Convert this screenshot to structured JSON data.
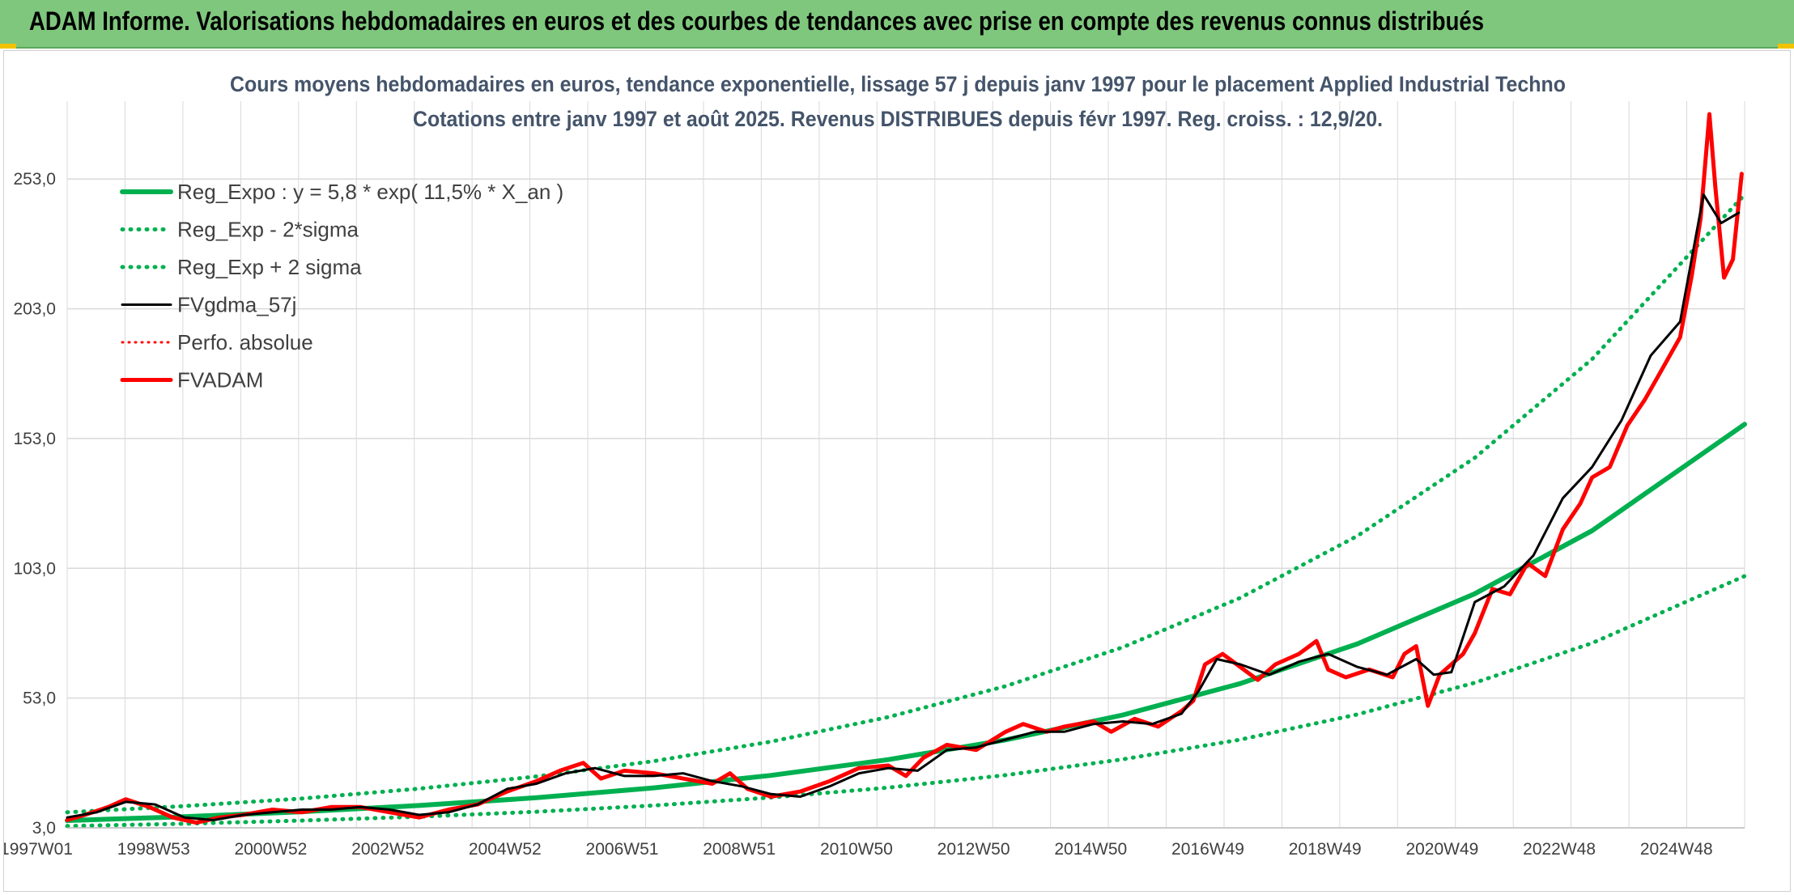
{
  "banner": {
    "title": "ADAM Informe. Valorisations hebdomadaires en euros et des courbes de tendances avec prise en compte des revenus connus distribués"
  },
  "colors": {
    "banner_bg": "#7fc77d",
    "trend": "#00b050",
    "smooth": "#000000",
    "price": "#ff0000",
    "grid": "#d9d9d9"
  },
  "chart_data": {
    "type": "line",
    "title": "Cours moyens hebdomadaires en euros, tendance exponentielle, lissage 57 j depuis janv 1997 pour le placement Applied Industrial Techno",
    "subtitle": "Cotations entre janv 1997 et août 2025. Revenus DISTRIBUES depuis févr 1997. Reg. croiss. : 12,9/20.",
    "x_ticks": [
      "1997W01",
      "1998W53",
      "2000W52",
      "2002W52",
      "2004W52",
      "2006W51",
      "2008W51",
      "2010W50",
      "2012W50",
      "2014W50",
      "2016W49",
      "2018W49",
      "2020W49",
      "2022W48",
      "2024W48"
    ],
    "x_range": [
      1997.0,
      2025.6
    ],
    "y_ticks": [
      "3,0",
      "53,0",
      "103,0",
      "153,0",
      "203,0",
      "253,0"
    ],
    "ylim": [
      3,
      283
    ],
    "grid": true,
    "legend_position": "top-left",
    "series": [
      {
        "name": "Reg_Expo : y = 5,8 * exp( 11,5% *  X_an )",
        "style": "solid-green",
        "points": [
          [
            1997,
            5.8
          ],
          [
            1999,
            7.3
          ],
          [
            2001,
            9.2
          ],
          [
            2003,
            11.6
          ],
          [
            2005,
            14.6
          ],
          [
            2007,
            18.4
          ],
          [
            2009,
            23.2
          ],
          [
            2011,
            29.3
          ],
          [
            2013,
            36.9
          ],
          [
            2015,
            46.5
          ],
          [
            2017,
            58.6
          ],
          [
            2019,
            73.9
          ],
          [
            2021,
            93.2
          ],
          [
            2023,
            117.5
          ],
          [
            2025.6,
            158.5
          ]
        ]
      },
      {
        "name": "Reg_Exp - 2*sigma",
        "style": "dotted-green",
        "points": [
          [
            1997,
            3.7
          ],
          [
            1999,
            4.6
          ],
          [
            2001,
            5.8
          ],
          [
            2003,
            7.3
          ],
          [
            2005,
            9.2
          ],
          [
            2007,
            11.6
          ],
          [
            2009,
            14.7
          ],
          [
            2011,
            18.5
          ],
          [
            2013,
            23.3
          ],
          [
            2015,
            29.4
          ],
          [
            2017,
            37.0
          ],
          [
            2019,
            46.7
          ],
          [
            2021,
            58.9
          ],
          [
            2023,
            74.2
          ],
          [
            2025.6,
            100.0
          ]
        ]
      },
      {
        "name": "Reg_Exp + 2 sigma",
        "style": "dotted-green",
        "points": [
          [
            1997,
            9.0
          ],
          [
            1999,
            11.4
          ],
          [
            2001,
            14.3
          ],
          [
            2003,
            18.1
          ],
          [
            2005,
            22.8
          ],
          [
            2007,
            28.7
          ],
          [
            2009,
            36.2
          ],
          [
            2011,
            45.7
          ],
          [
            2013,
            57.6
          ],
          [
            2015,
            72.6
          ],
          [
            2017,
            91.6
          ],
          [
            2019,
            115.5
          ],
          [
            2021,
            145.6
          ],
          [
            2023,
            183.6
          ],
          [
            2025.6,
            247.0
          ]
        ]
      },
      {
        "name": "FVgdma_57j",
        "style": "solid-black",
        "points": [
          [
            1997,
            7
          ],
          [
            1997.5,
            9
          ],
          [
            1998,
            13
          ],
          [
            1998.5,
            12
          ],
          [
            1999,
            7
          ],
          [
            1999.5,
            6
          ],
          [
            2000,
            8
          ],
          [
            2000.5,
            9
          ],
          [
            2001,
            10
          ],
          [
            2001.5,
            10
          ],
          [
            2002,
            11
          ],
          [
            2002.5,
            10
          ],
          [
            2003,
            8
          ],
          [
            2003.5,
            9
          ],
          [
            2004,
            12
          ],
          [
            2004.5,
            18
          ],
          [
            2005,
            20
          ],
          [
            2005.5,
            24
          ],
          [
            2006,
            26
          ],
          [
            2006.5,
            23
          ],
          [
            2007,
            23
          ],
          [
            2007.5,
            24
          ],
          [
            2008,
            21
          ],
          [
            2008.5,
            19
          ],
          [
            2009,
            16
          ],
          [
            2009.5,
            15
          ],
          [
            2010,
            19
          ],
          [
            2010.5,
            24
          ],
          [
            2011,
            26
          ],
          [
            2011.5,
            25
          ],
          [
            2012,
            33
          ],
          [
            2012.5,
            34
          ],
          [
            2013,
            37
          ],
          [
            2013.5,
            40
          ],
          [
            2014,
            40
          ],
          [
            2014.5,
            43
          ],
          [
            2015,
            44
          ],
          [
            2015.5,
            43
          ],
          [
            2016,
            47
          ],
          [
            2016.3,
            56
          ],
          [
            2016.6,
            68
          ],
          [
            2017,
            66
          ],
          [
            2017.5,
            62
          ],
          [
            2018,
            67
          ],
          [
            2018.5,
            70
          ],
          [
            2019,
            65
          ],
          [
            2019.5,
            62
          ],
          [
            2020,
            68
          ],
          [
            2020.3,
            62
          ],
          [
            2020.6,
            63
          ],
          [
            2021,
            90
          ],
          [
            2021.5,
            96
          ],
          [
            2022,
            108
          ],
          [
            2022.5,
            130
          ],
          [
            2023,
            142
          ],
          [
            2023.5,
            160
          ],
          [
            2024,
            185
          ],
          [
            2024.5,
            198
          ],
          [
            2024.9,
            247
          ],
          [
            2025.2,
            236
          ],
          [
            2025.5,
            240
          ]
        ]
      },
      {
        "name": "Perfo. absolue",
        "style": "dotted-red",
        "points": [
          [
            1997,
            7
          ],
          [
            1998,
            13
          ],
          [
            1999,
            7
          ],
          [
            2000,
            8
          ],
          [
            2001,
            10
          ],
          [
            2002,
            11
          ],
          [
            2003,
            8
          ],
          [
            2004,
            12
          ],
          [
            2005,
            20
          ],
          [
            2006,
            26
          ],
          [
            2007,
            23
          ],
          [
            2008,
            21
          ],
          [
            2009,
            16
          ],
          [
            2010,
            19
          ],
          [
            2011,
            26
          ],
          [
            2012,
            33
          ],
          [
            2013,
            37
          ],
          [
            2014,
            40
          ],
          [
            2015,
            44
          ],
          [
            2016,
            47
          ],
          [
            2017,
            66
          ],
          [
            2018,
            67
          ],
          [
            2019,
            65
          ],
          [
            2020,
            68
          ],
          [
            2021,
            90
          ],
          [
            2022,
            108
          ],
          [
            2023,
            142
          ],
          [
            2024,
            185
          ],
          [
            2025.5,
            240
          ]
        ]
      },
      {
        "name": "FVADAM",
        "style": "solid-red",
        "points": [
          [
            1997,
            6
          ],
          [
            1997.3,
            8
          ],
          [
            1997.7,
            11
          ],
          [
            1998,
            14
          ],
          [
            1998.4,
            11
          ],
          [
            1998.8,
            7
          ],
          [
            1999.2,
            5
          ],
          [
            1999.6,
            7
          ],
          [
            2000,
            8
          ],
          [
            2000.5,
            10
          ],
          [
            2001,
            9
          ],
          [
            2001.5,
            11
          ],
          [
            2002,
            11
          ],
          [
            2002.5,
            9
          ],
          [
            2003,
            7
          ],
          [
            2003.5,
            10
          ],
          [
            2004,
            12
          ],
          [
            2004.5,
            17
          ],
          [
            2005,
            21
          ],
          [
            2005.4,
            25
          ],
          [
            2005.8,
            28
          ],
          [
            2006.1,
            22
          ],
          [
            2006.5,
            25
          ],
          [
            2007,
            24
          ],
          [
            2007.5,
            22
          ],
          [
            2008,
            20
          ],
          [
            2008.3,
            24
          ],
          [
            2008.6,
            18
          ],
          [
            2009,
            15
          ],
          [
            2009.5,
            17
          ],
          [
            2010,
            21
          ],
          [
            2010.5,
            26
          ],
          [
            2011,
            27
          ],
          [
            2011.3,
            23
          ],
          [
            2011.6,
            30
          ],
          [
            2012,
            35
          ],
          [
            2012.5,
            33
          ],
          [
            2013,
            40
          ],
          [
            2013.3,
            43
          ],
          [
            2013.7,
            40
          ],
          [
            2014,
            42
          ],
          [
            2014.5,
            44
          ],
          [
            2014.8,
            40
          ],
          [
            2015.2,
            45
          ],
          [
            2015.6,
            42
          ],
          [
            2016,
            48
          ],
          [
            2016.2,
            52
          ],
          [
            2016.4,
            66
          ],
          [
            2016.7,
            70
          ],
          [
            2017,
            65
          ],
          [
            2017.3,
            60
          ],
          [
            2017.6,
            66
          ],
          [
            2018,
            70
          ],
          [
            2018.3,
            75
          ],
          [
            2018.5,
            64
          ],
          [
            2018.8,
            61
          ],
          [
            2019.2,
            64
          ],
          [
            2019.6,
            61
          ],
          [
            2019.8,
            70
          ],
          [
            2020,
            73
          ],
          [
            2020.2,
            50
          ],
          [
            2020.4,
            62
          ],
          [
            2020.8,
            70
          ],
          [
            2021,
            78
          ],
          [
            2021.3,
            95
          ],
          [
            2021.6,
            93
          ],
          [
            2021.9,
            105
          ],
          [
            2022.2,
            100
          ],
          [
            2022.5,
            118
          ],
          [
            2022.8,
            128
          ],
          [
            2023,
            138
          ],
          [
            2023.3,
            142
          ],
          [
            2023.6,
            158
          ],
          [
            2023.9,
            168
          ],
          [
            2024.2,
            180
          ],
          [
            2024.5,
            192
          ],
          [
            2024.7,
            216
          ],
          [
            2024.85,
            238
          ],
          [
            2025.0,
            278
          ],
          [
            2025.1,
            250
          ],
          [
            2025.25,
            215
          ],
          [
            2025.4,
            222
          ],
          [
            2025.55,
            255
          ]
        ]
      }
    ]
  }
}
